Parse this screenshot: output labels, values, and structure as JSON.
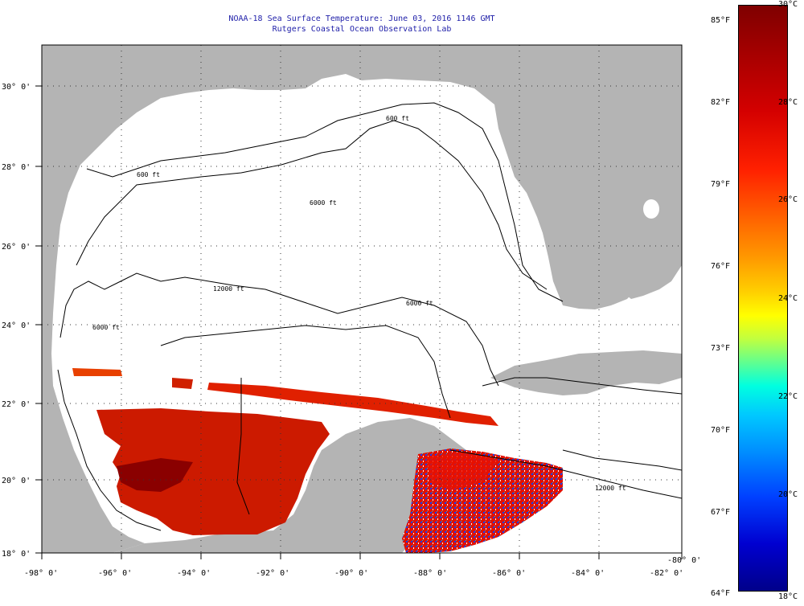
{
  "title": "NOAA-18 Sea Surface Temperature:  June 03, 2016 1146 GMT",
  "subtitle": "Rutgers Coastal Ocean Observation Lab",
  "map": {
    "lon_ticks": [
      "-98° 0'",
      "-96° 0'",
      "-94° 0'",
      "-92° 0'",
      "-90° 0'",
      "-88° 0'",
      "-86° 0'",
      "-84° 0'",
      "-82° 0'",
      "-80° 0'"
    ],
    "lat_ticks": [
      "30° 0'",
      "28° 0'",
      "26° 0'",
      "24° 0'",
      "22° 0'",
      "20° 0'",
      "18° 0'"
    ],
    "contour_labels": [
      "600 ft",
      "600 ft",
      "6000 ft",
      "12000 ft",
      "6000 ft",
      "6000 ft",
      "12000 ft"
    ],
    "land_color": "#b4b4b4",
    "no_data_color": "#ffffff"
  },
  "colorbar": {
    "fahrenheit": [
      "85°F",
      "82°F",
      "79°F",
      "76°F",
      "73°F",
      "70°F",
      "67°F",
      "64°F"
    ],
    "celsius": [
      "30°C",
      "28°C",
      "26°C",
      "24°C",
      "22°C",
      "20°C",
      "18°C"
    ]
  }
}
